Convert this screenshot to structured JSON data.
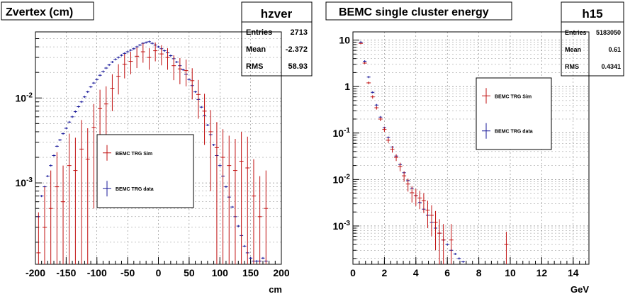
{
  "colors": {
    "sim": "#c01010",
    "data": "#1a1a9a",
    "axis": "#000000",
    "grid": "#000000"
  },
  "panels": [
    {
      "title": "Zvertex (cm)",
      "stats": {
        "name": "hzver",
        "rows": [
          {
            "label": "Entries",
            "value": "2713"
          },
          {
            "label": "Mean",
            "value": "-2.372"
          },
          {
            "label": "RMS",
            "value": "58.93"
          }
        ]
      },
      "legend": {
        "sim": "BEMC TRG Sim",
        "data": "BEMC TRG data"
      },
      "xunit": "cm"
    },
    {
      "title": "BEMC single cluster energy",
      "stats": {
        "name": "h15",
        "rows": [
          {
            "label": "Entries",
            "value": "5183050"
          },
          {
            "label": "Mean",
            "value": "0.61"
          },
          {
            "label": "RMS",
            "value": "0.4341"
          }
        ]
      },
      "legend": {
        "sim": "BEMC TRG Sim",
        "data": "BEMC TRG data"
      },
      "xunit": "GeV"
    }
  ],
  "chart_data": [
    {
      "type": "scatter",
      "title": "Zvertex (cm)",
      "xlabel": "cm",
      "ylabel": "",
      "xlim": [
        -200,
        200
      ],
      "ylog": true,
      "ylim": [
        0.00011,
        0.06
      ],
      "grid": true,
      "legend_position": "middle-left",
      "xticks": [
        -200,
        -150,
        -100,
        -50,
        0,
        50,
        100,
        150,
        200
      ],
      "yticks": [
        {
          "v": 0.001,
          "label": "10^-3"
        },
        {
          "v": 0.01,
          "label": "10^-2"
        }
      ],
      "series": [
        {
          "name": "BEMC TRG Sim",
          "x": [
            -195,
            -185,
            -175,
            -165,
            -155,
            -145,
            -135,
            -125,
            -115,
            -105,
            -95,
            -85,
            -75,
            -65,
            -55,
            -45,
            -35,
            -25,
            -15,
            -5,
            5,
            15,
            25,
            35,
            45,
            55,
            65,
            75,
            85,
            95,
            105,
            115,
            125,
            135,
            145,
            155,
            165,
            175
          ],
          "y": [
            0.00015,
            0.0003,
            0.0005,
            0.0009,
            0.0006,
            0.0016,
            0.0014,
            0.0025,
            0.0019,
            0.0045,
            0.0075,
            0.0085,
            0.013,
            0.018,
            0.025,
            0.027,
            0.031,
            0.035,
            0.03,
            0.036,
            0.033,
            0.03,
            0.024,
            0.022,
            0.021,
            0.016,
            0.011,
            0.007,
            0.004,
            0.0026,
            0.002,
            0.0016,
            0.0014,
            0.0018,
            0.0015,
            0.0007,
            0.0004,
            0.0005
          ],
          "err": [
            0.0003,
            0.0006,
            0.0009,
            0.0014,
            0.001,
            0.0022,
            0.002,
            0.003,
            0.0025,
            0.004,
            0.005,
            0.0052,
            0.006,
            0.007,
            0.008,
            0.008,
            0.0085,
            0.009,
            0.0085,
            0.009,
            0.0088,
            0.0085,
            0.0078,
            0.0075,
            0.0073,
            0.0064,
            0.0053,
            0.0042,
            0.0032,
            0.0026,
            0.0023,
            0.002,
            0.0019,
            0.0022,
            0.002,
            0.0012,
            0.0008,
            0.0009
          ]
        },
        {
          "name": "BEMC TRG data",
          "x": [
            -195,
            -190,
            -185,
            -180,
            -175,
            -170,
            -165,
            -160,
            -155,
            -150,
            -145,
            -140,
            -135,
            -130,
            -125,
            -120,
            -115,
            -110,
            -105,
            -100,
            -95,
            -90,
            -85,
            -80,
            -75,
            -70,
            -65,
            -60,
            -55,
            -50,
            -45,
            -40,
            -35,
            -30,
            -25,
            -20,
            -15,
            -10,
            -5,
            0,
            5,
            10,
            15,
            20,
            25,
            30,
            35,
            40,
            45,
            50,
            55,
            60,
            65,
            70,
            75,
            80,
            85,
            90,
            95,
            100,
            105,
            110,
            115,
            120,
            125,
            130,
            135,
            140,
            145,
            150,
            155,
            160,
            165,
            170,
            175
          ],
          "y": [
            0.0004,
            0.0007,
            0.0009,
            0.0012,
            0.0016,
            0.0021,
            0.0027,
            0.0032,
            0.0038,
            0.0044,
            0.0052,
            0.006,
            0.0069,
            0.0079,
            0.009,
            0.0103,
            0.0118,
            0.0135,
            0.015,
            0.0165,
            0.0185,
            0.0205,
            0.0225,
            0.0245,
            0.0265,
            0.0285,
            0.03,
            0.0318,
            0.0335,
            0.035,
            0.0365,
            0.038,
            0.04,
            0.042,
            0.044,
            0.045,
            0.046,
            0.044,
            0.042,
            0.04,
            0.038,
            0.036,
            0.034,
            0.0315,
            0.029,
            0.0265,
            0.024,
            0.0215,
            0.019,
            0.0165,
            0.014,
            0.0118,
            0.0096,
            0.0078,
            0.0062,
            0.0048,
            0.0037,
            0.0028,
            0.0021,
            0.0016,
            0.0012,
            0.0009,
            0.00068,
            0.00052,
            0.0004,
            0.00031,
            0.00024,
            0.00018,
            0.00015,
            0.00013,
            0.00012,
            0.00012,
            0.00012,
            0.00013,
            0.00012
          ]
        }
      ]
    },
    {
      "type": "scatter",
      "title": "BEMC single cluster energy",
      "xlabel": "GeV",
      "ylabel": "",
      "xlim": [
        0,
        15
      ],
      "ylog": true,
      "ylim": [
        0.00015,
        15
      ],
      "grid": true,
      "legend_position": "top-right",
      "xticks": [
        0,
        2,
        4,
        6,
        8,
        10,
        12,
        14
      ],
      "yticks": [
        {
          "v": 0.001,
          "label": "10^-3"
        },
        {
          "v": 0.01,
          "label": "10^-2"
        },
        {
          "v": 0.1,
          "label": "10^-1"
        },
        {
          "v": 1,
          "label": "1"
        },
        {
          "v": 10,
          "label": "10"
        }
      ],
      "series": [
        {
          "name": "BEMC TRG Sim",
          "x": [
            0.5,
            0.75,
            1.0,
            1.25,
            1.5,
            1.75,
            2.0,
            2.25,
            2.5,
            2.75,
            3.0,
            3.25,
            3.5,
            3.75,
            4.0,
            4.25,
            4.5,
            4.75,
            5.0,
            5.25,
            5.5,
            5.75,
            6.25,
            9.75
          ],
          "y": [
            8.5,
            3.2,
            1.2,
            0.6,
            0.35,
            0.2,
            0.12,
            0.07,
            0.045,
            0.03,
            0.019,
            0.012,
            0.008,
            0.0052,
            0.0045,
            0.004,
            0.0035,
            0.0022,
            0.0017,
            0.0012,
            0.0007,
            0.0005,
            0.0005,
            0.0004
          ],
          "err": [
            0.3,
            0.15,
            0.08,
            0.05,
            0.03,
            0.02,
            0.014,
            0.009,
            0.007,
            0.005,
            0.004,
            0.003,
            0.0025,
            0.002,
            0.0018,
            0.0017,
            0.0016,
            0.0013,
            0.0011,
            0.0009,
            0.0007,
            0.0006,
            0.0006,
            0.00035
          ]
        },
        {
          "name": "BEMC TRG data",
          "x": [
            0.5,
            0.75,
            1.0,
            1.25,
            1.5,
            1.75,
            2.0,
            2.25,
            2.5,
            2.75,
            3.0,
            3.25,
            3.5,
            3.75,
            4.0,
            4.25,
            4.5,
            4.75,
            5.0,
            5.25,
            5.5,
            5.75,
            6.0,
            6.25,
            6.5,
            6.75,
            7.0
          ],
          "y": [
            9.0,
            3.5,
            1.6,
            0.75,
            0.4,
            0.22,
            0.13,
            0.08,
            0.05,
            0.032,
            0.021,
            0.014,
            0.0095,
            0.0065,
            0.0045,
            0.0032,
            0.0023,
            0.0017,
            0.0012,
            0.0009,
            0.0007,
            0.0005,
            0.0004,
            0.0003,
            0.00025,
            0.0002,
            0.00017
          ]
        }
      ]
    }
  ]
}
